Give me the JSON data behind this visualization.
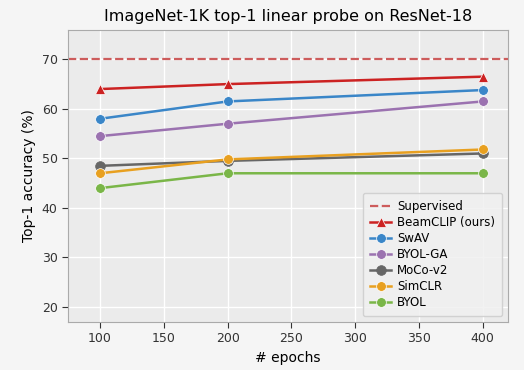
{
  "title": "ImageNet-1K top-1 linear probe on ResNet-18",
  "xlabel": "# epochs",
  "ylabel": "Top-1 accuracy (%)",
  "xlim": [
    75,
    420
  ],
  "ylim": [
    17,
    76
  ],
  "xticks": [
    100,
    150,
    200,
    250,
    300,
    350,
    400
  ],
  "yticks": [
    20,
    30,
    40,
    50,
    60,
    70
  ],
  "background_color": "#ebebeb",
  "supervised_y": 70.0,
  "supervised_color": "#cd5c5c",
  "series": [
    {
      "label": "BeamCLIP (ours)",
      "color": "#cc2222",
      "marker": "^",
      "x": [
        100,
        200,
        400
      ],
      "y": [
        64.0,
        65.0,
        66.5
      ],
      "linewidth": 1.8,
      "markersize": 7,
      "zorder": 5
    },
    {
      "label": "SwAV",
      "color": "#3a86c8",
      "marker": "o",
      "x": [
        100,
        200,
        400
      ],
      "y": [
        58.0,
        61.5,
        63.8
      ],
      "linewidth": 1.8,
      "markersize": 7,
      "zorder": 4
    },
    {
      "label": "BYOL-GA",
      "color": "#9b72b0",
      "marker": "o",
      "x": [
        100,
        200,
        400
      ],
      "y": [
        54.5,
        57.0,
        61.5
      ],
      "linewidth": 1.8,
      "markersize": 7,
      "zorder": 3
    },
    {
      "label": "MoCo-v2",
      "color": "#666666",
      "marker": "o",
      "x": [
        100,
        200,
        400
      ],
      "y": [
        48.5,
        49.5,
        51.0
      ],
      "linewidth": 1.8,
      "markersize": 7,
      "zorder": 2
    },
    {
      "label": "SimCLR",
      "color": "#e8a020",
      "marker": "o",
      "x": [
        100,
        200,
        400
      ],
      "y": [
        47.0,
        49.8,
        51.8
      ],
      "linewidth": 1.8,
      "markersize": 7,
      "zorder": 2
    },
    {
      "label": "BYOL",
      "color": "#7ab648",
      "marker": "o",
      "x": [
        100,
        200,
        400
      ],
      "y": [
        44.0,
        47.0,
        47.0
      ],
      "linewidth": 1.8,
      "markersize": 7,
      "zorder": 2
    }
  ],
  "title_fontsize": 11.5,
  "axis_label_fontsize": 10,
  "tick_fontsize": 9,
  "legend_fontsize": 8.5
}
